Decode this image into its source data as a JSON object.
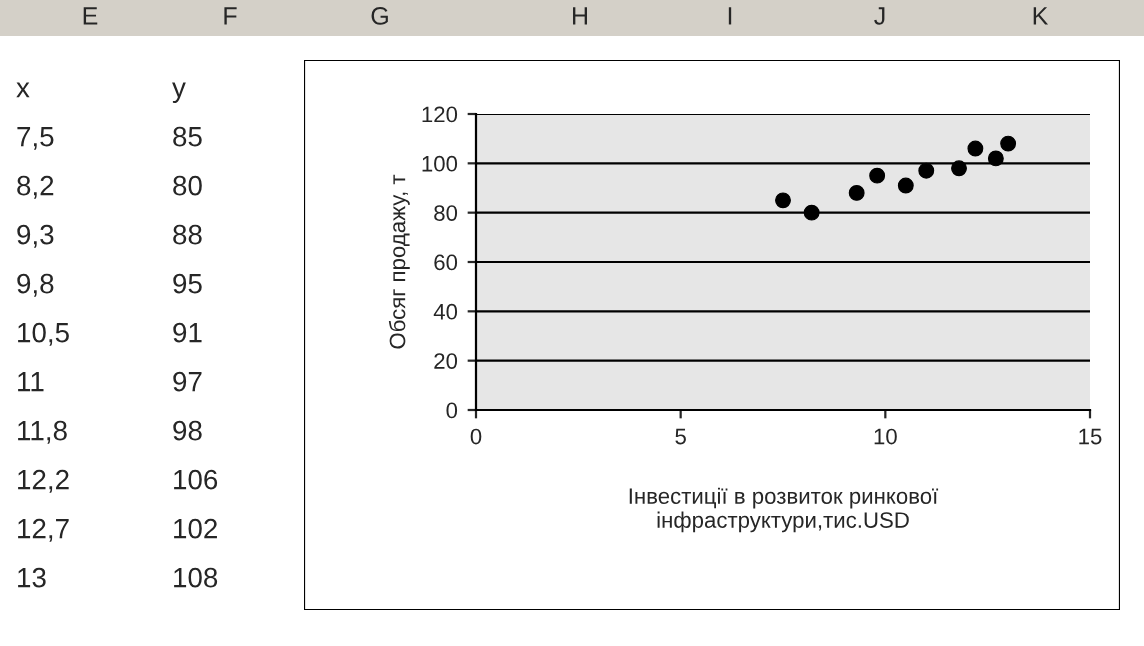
{
  "chart_data": {
    "type": "scatter",
    "xlabel": "Інвестиції в розвиток ринкової\nінфраструктури,тис.USD",
    "ylabel": "Обсяг продажу, т",
    "x": [
      7.5,
      8.2,
      9.3,
      9.8,
      10.5,
      11,
      11.8,
      12.2,
      12.7,
      13
    ],
    "values": [
      85,
      80,
      88,
      95,
      91,
      97,
      98,
      106,
      102,
      108
    ],
    "color": "#000000",
    "marker": "circle",
    "xlim": [
      0,
      15
    ],
    "xticks": [
      0,
      5,
      10,
      15
    ],
    "ylim": [
      0,
      120
    ],
    "yticks": [
      0,
      20,
      40,
      60,
      80,
      100,
      120
    ],
    "grid": "y",
    "annotations": [
      "E",
      "F",
      "G",
      "H",
      "I",
      "J",
      "K",
      "x",
      "y",
      "7,5",
      "85",
      "8,2",
      "80",
      "9,3",
      "88",
      "9,8",
      "95",
      "10,5",
      "91",
      "11",
      "97",
      "11,8",
      "98",
      "12,2",
      "106",
      "12,7",
      "102",
      "13",
      "108"
    ]
  }
}
